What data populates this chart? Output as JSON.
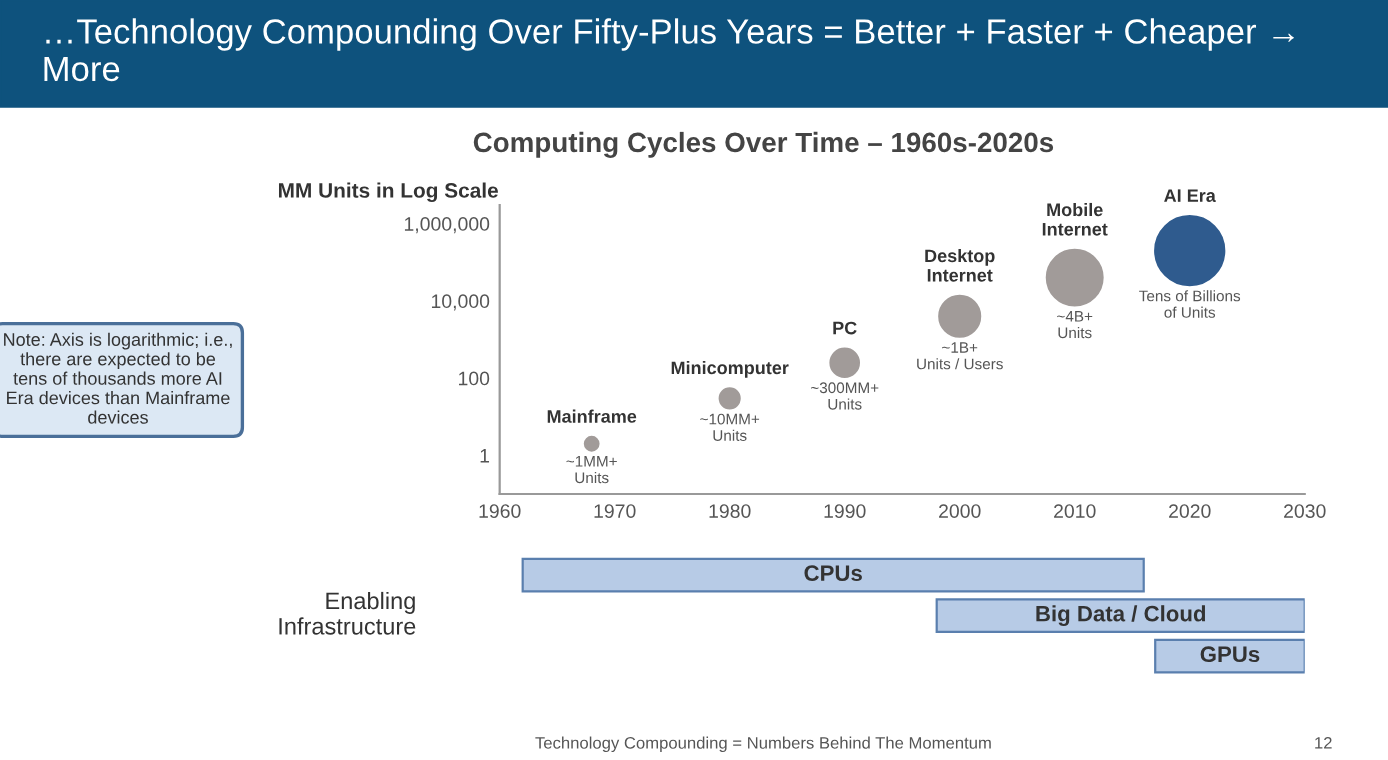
{
  "chart_data": [
    {
      "type": "bubble",
      "title": "…Technology Compounding Over Fifty-Plus Years = Better + Faster + Cheaper → More",
      "subtitle": "Computing Cycles Over Time – 1960s-2020s",
      "ylabel": "MM Units in Log Scale",
      "x": [
        1968,
        1980,
        1990,
        2000,
        2010,
        2020
      ],
      "values": [
        2,
        30,
        250,
        4000,
        40000,
        200000
      ],
      "sizes": [
        0.06,
        0.11,
        0.2,
        0.38,
        0.67,
        1
      ],
      "colors": [
        "#a19b99",
        "#a19b99",
        "#a19b99",
        "#a19b99",
        "#a19b99",
        "#2f5b8e"
      ],
      "log": "y",
      "xlim": [
        1960,
        2030
      ],
      "ylim": [
        0.1,
        3000000
      ],
      "xticks": [
        1960,
        1970,
        1980,
        1990,
        2000,
        2010,
        2020,
        2030
      ],
      "yticks": [
        {
          "value": 1,
          "label": "1"
        },
        {
          "value": 100,
          "label": "100"
        },
        {
          "value": 10000,
          "label": "10,000"
        },
        {
          "value": 1000000,
          "label": "1,000,000"
        }
      ],
      "grid": false,
      "annotations": [
        {
          "text": "Mainframe",
          "x": 1968,
          "y": 2
        },
        {
          "text": "~1MM+\nUnits",
          "x": 1968,
          "y": 2
        },
        {
          "text": "Minicomputer",
          "x": 1980,
          "y": 30
        },
        {
          "text": "~10MM+\nUnits",
          "x": 1980,
          "y": 30
        },
        {
          "text": "PC",
          "x": 1990,
          "y": 250
        },
        {
          "text": "~300MM+\nUnits",
          "x": 1990,
          "y": 250
        },
        {
          "text": "Desktop\nInternet",
          "x": 2000,
          "y": 4000
        },
        {
          "text": "~1B+\nUnits / Users",
          "x": 2000,
          "y": 4000
        },
        {
          "text": "Mobile\nInternet",
          "x": 2010,
          "y": 40000
        },
        {
          "text": "~4B+\nUnits",
          "x": 2010,
          "y": 40000
        },
        {
          "text": "AI Era",
          "x": 2020,
          "y": 200000
        },
        {
          "text": "Tens of Billions\nof Units",
          "x": 2020,
          "y": 200000
        },
        "Note: Axis is logarithmic; i.e., there are expected to be tens of thousands more AI Era devices than Mainframe devices",
        "Technology Compounding = Numbers Behind The Momentum",
        "12"
      ]
    },
    {
      "type": "bar",
      "orientation": "horizontal",
      "ylabel": "Enabling\nInfrastructure",
      "categories": [
        "CPUs",
        "Big Data / Cloud",
        "GPUs"
      ],
      "base": [
        1962,
        1998,
        2017
      ],
      "values": [
        54,
        32,
        13
      ],
      "color": "#b7cbe6",
      "xlim": [
        1960,
        2030
      ],
      "tick_labels": false
    }
  ]
}
